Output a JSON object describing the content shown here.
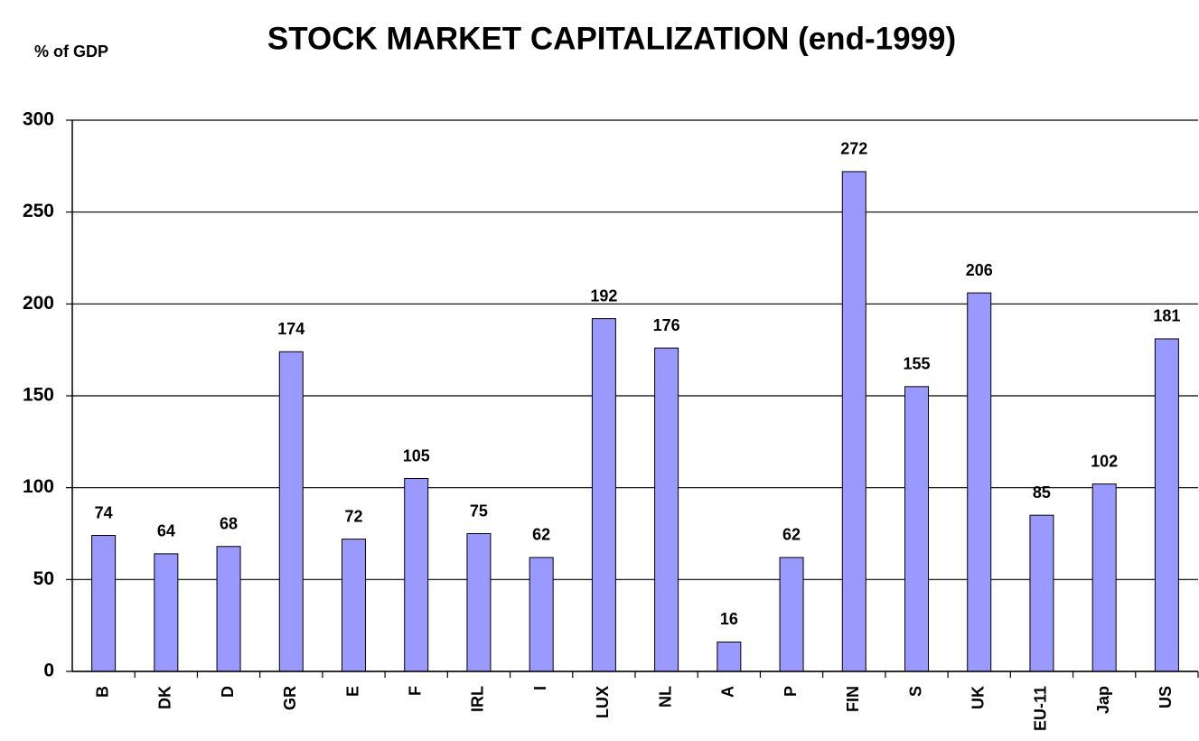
{
  "chart_data": {
    "type": "bar",
    "title": "STOCK MARKET CAPITALIZATION (end-1999)",
    "y_label": "% of GDP",
    "categories": [
      "B",
      "DK",
      "D",
      "GR",
      "E",
      "F",
      "IRL",
      "I",
      "LUX",
      "NL",
      "A",
      "P",
      "FIN",
      "S",
      "UK",
      "EU-11",
      "Jap",
      "US"
    ],
    "values": [
      74,
      64,
      68,
      174,
      72,
      105,
      75,
      62,
      192,
      176,
      16,
      62,
      272,
      155,
      206,
      85,
      102,
      181
    ],
    "color": "#9999ff",
    "ylim": [
      0,
      300
    ],
    "yticks": [
      0,
      50,
      100,
      150,
      200,
      250,
      300
    ],
    "grid": true
  }
}
